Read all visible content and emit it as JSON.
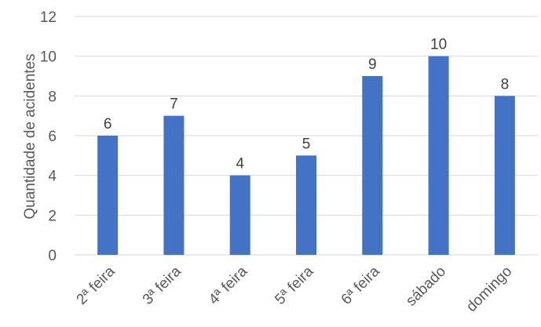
{
  "chart_data": {
    "type": "bar",
    "title": "",
    "xlabel": "",
    "ylabel": "Quantidade de acidentes",
    "categories": [
      "2ª feira",
      "3ª feira",
      "4ª feira",
      "5ª feira",
      "6ª feira",
      "sábado",
      "domingo"
    ],
    "values": [
      6,
      7,
      4,
      5,
      9,
      10,
      8
    ],
    "ylim": [
      0,
      12
    ],
    "yticks": [
      0,
      2,
      4,
      6,
      8,
      10,
      12
    ],
    "grid": true,
    "legend": "none",
    "bar_color": "#4472c4"
  }
}
